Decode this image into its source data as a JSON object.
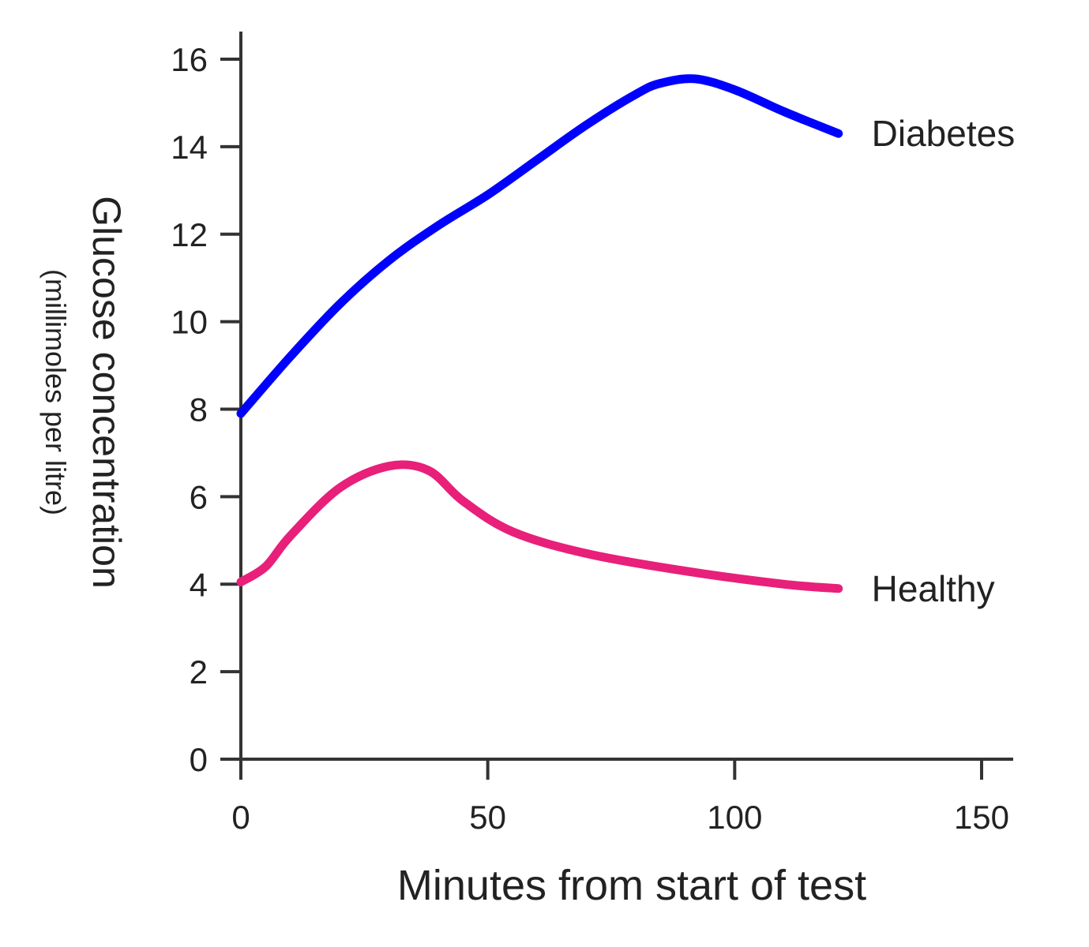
{
  "chart_data": {
    "type": "line",
    "title": "",
    "xlabel": "Minutes from start of test",
    "ylabel": "Glucose concentration",
    "ylabel_sub": "(millimoles per litre)",
    "xlim": [
      0,
      155
    ],
    "ylim": [
      0,
      16.6
    ],
    "xticks": [
      0,
      50,
      100,
      150
    ],
    "yticks": [
      0,
      2,
      4,
      6,
      8,
      10,
      12,
      14,
      16
    ],
    "grid": false,
    "legend": "inline labels at line ends",
    "series": [
      {
        "name": "Diabetes",
        "color": "#0000ff",
        "x": [
          0,
          10,
          20,
          30,
          40,
          50,
          60,
          70,
          80,
          85,
          92,
          100,
          110,
          121
        ],
        "y": [
          7.9,
          9.2,
          10.4,
          11.4,
          12.2,
          12.9,
          13.7,
          14.5,
          15.2,
          15.45,
          15.55,
          15.3,
          14.8,
          14.3
        ]
      },
      {
        "name": "Healthy",
        "color": "#e8207a",
        "x": [
          0,
          5,
          10,
          20,
          30,
          38,
          45,
          55,
          70,
          90,
          110,
          121
        ],
        "y": [
          4.05,
          4.4,
          5.1,
          6.2,
          6.7,
          6.6,
          5.9,
          5.2,
          4.7,
          4.3,
          4.0,
          3.9
        ]
      }
    ]
  }
}
